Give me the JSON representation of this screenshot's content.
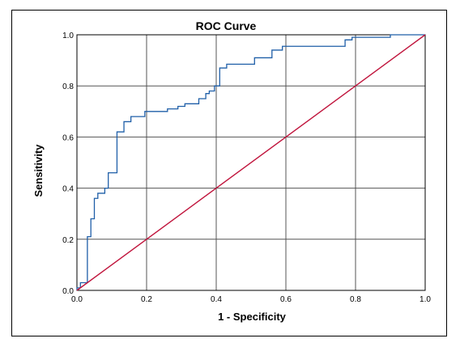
{
  "chart_data": {
    "type": "line",
    "title": "ROC Curve",
    "xlabel": "1 - Specificity",
    "ylabel": "Sensitivity",
    "xlim": [
      0,
      1
    ],
    "ylim": [
      0,
      1
    ],
    "xticks": [
      "0.0",
      "0.2",
      "0.4",
      "0.6",
      "0.8",
      "1.0"
    ],
    "yticks": [
      "0.0",
      "0.2",
      "0.4",
      "0.6",
      "0.8",
      "1.0"
    ],
    "grid": true,
    "legend": "none",
    "series": [
      {
        "color": "#1f5fa8",
        "x": [
          0.0,
          0.0,
          0.01,
          0.01,
          0.03,
          0.03,
          0.04,
          0.04,
          0.05,
          0.05,
          0.06,
          0.06,
          0.08,
          0.08,
          0.09,
          0.09,
          0.115,
          0.115,
          0.135,
          0.135,
          0.155,
          0.155,
          0.195,
          0.195,
          0.26,
          0.26,
          0.29,
          0.29,
          0.31,
          0.31,
          0.35,
          0.35,
          0.37,
          0.37,
          0.38,
          0.38,
          0.395,
          0.395,
          0.41,
          0.41,
          0.43,
          0.43,
          0.51,
          0.51,
          0.56,
          0.56,
          0.59,
          0.59,
          0.77,
          0.77,
          0.79,
          0.79,
          0.9,
          0.9,
          1.0
        ],
        "y": [
          0.0,
          0.01,
          0.01,
          0.03,
          0.03,
          0.21,
          0.21,
          0.28,
          0.28,
          0.36,
          0.36,
          0.38,
          0.38,
          0.4,
          0.4,
          0.46,
          0.46,
          0.62,
          0.62,
          0.66,
          0.66,
          0.68,
          0.68,
          0.7,
          0.7,
          0.71,
          0.71,
          0.72,
          0.72,
          0.73,
          0.73,
          0.75,
          0.75,
          0.77,
          0.77,
          0.78,
          0.78,
          0.8,
          0.8,
          0.87,
          0.87,
          0.885,
          0.885,
          0.91,
          0.91,
          0.94,
          0.94,
          0.955,
          0.955,
          0.98,
          0.98,
          0.99,
          0.99,
          1.0,
          1.0
        ]
      },
      {
        "color": "#c0143c",
        "x": [
          0,
          1
        ],
        "y": [
          0,
          1
        ]
      }
    ]
  }
}
